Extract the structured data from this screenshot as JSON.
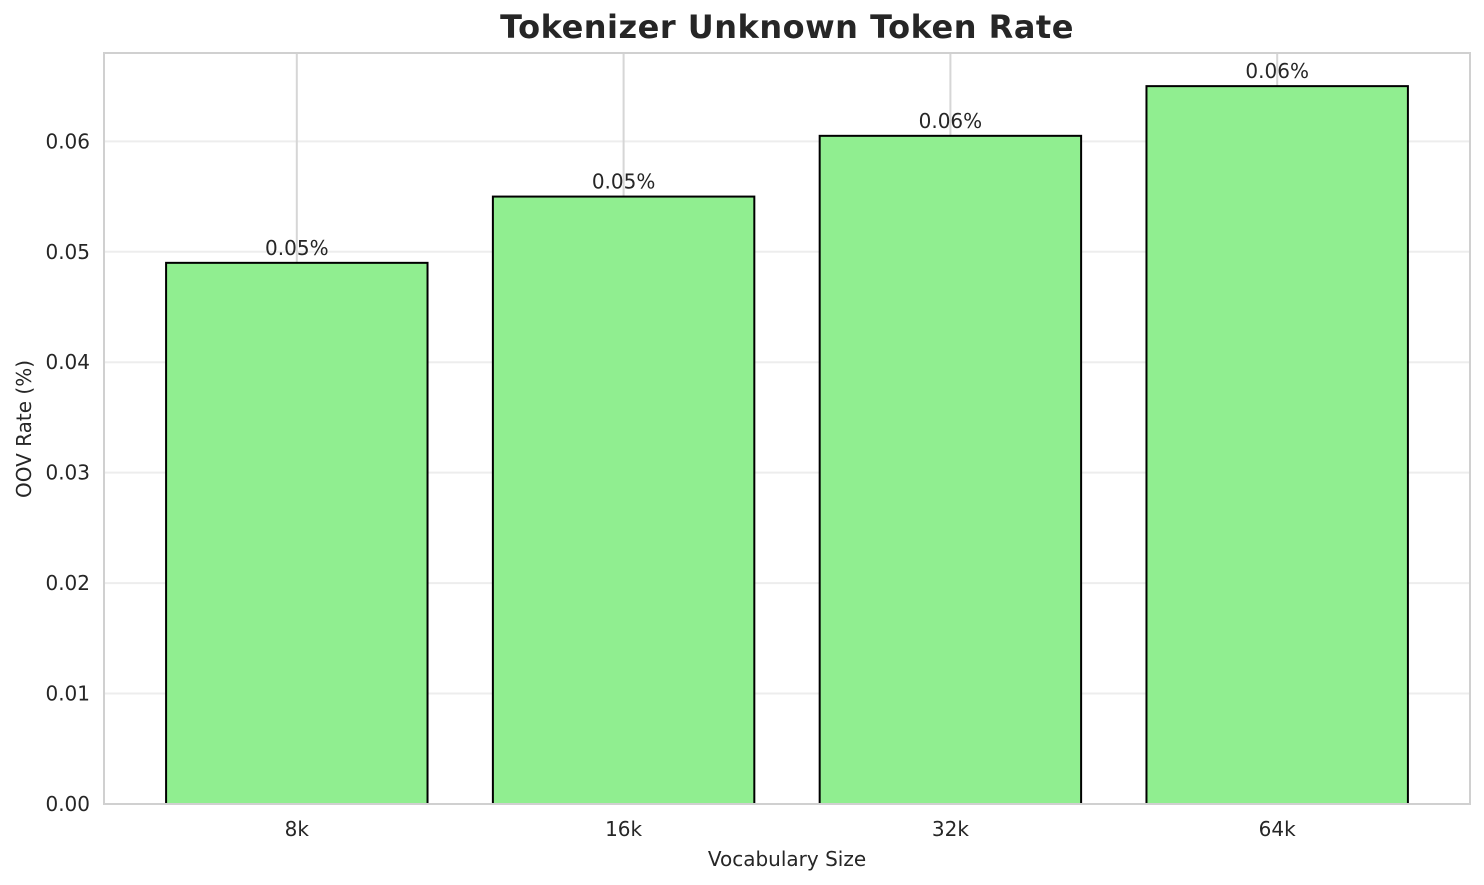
{
  "chart_data": {
    "type": "bar",
    "title": "Tokenizer Unknown Token Rate",
    "xlabel": "Vocabulary Size",
    "ylabel": "OOV Rate (%)",
    "categories": [
      "8k",
      "16k",
      "32k",
      "64k"
    ],
    "values": [
      0.049,
      0.055,
      0.0605,
      0.065
    ],
    "bar_labels": [
      "0.05%",
      "0.05%",
      "0.06%",
      "0.06%"
    ],
    "ytick_values": [
      0.0,
      0.01,
      0.02,
      0.03,
      0.04,
      0.05,
      0.06
    ],
    "ytick_labels": [
      "0.00",
      "0.01",
      "0.02",
      "0.03",
      "0.04",
      "0.05",
      "0.06"
    ],
    "ylim": [
      0,
      0.068
    ],
    "grid": true,
    "legend": "none",
    "colors": {
      "bar_fill": "#90EE90",
      "bar_edge": "#000000",
      "grid_horizontal": "#ededed",
      "grid_vertical": "#d6d6d6",
      "spine": "#d0d0d0",
      "text": "#262626",
      "background": "#ffffff"
    }
  }
}
